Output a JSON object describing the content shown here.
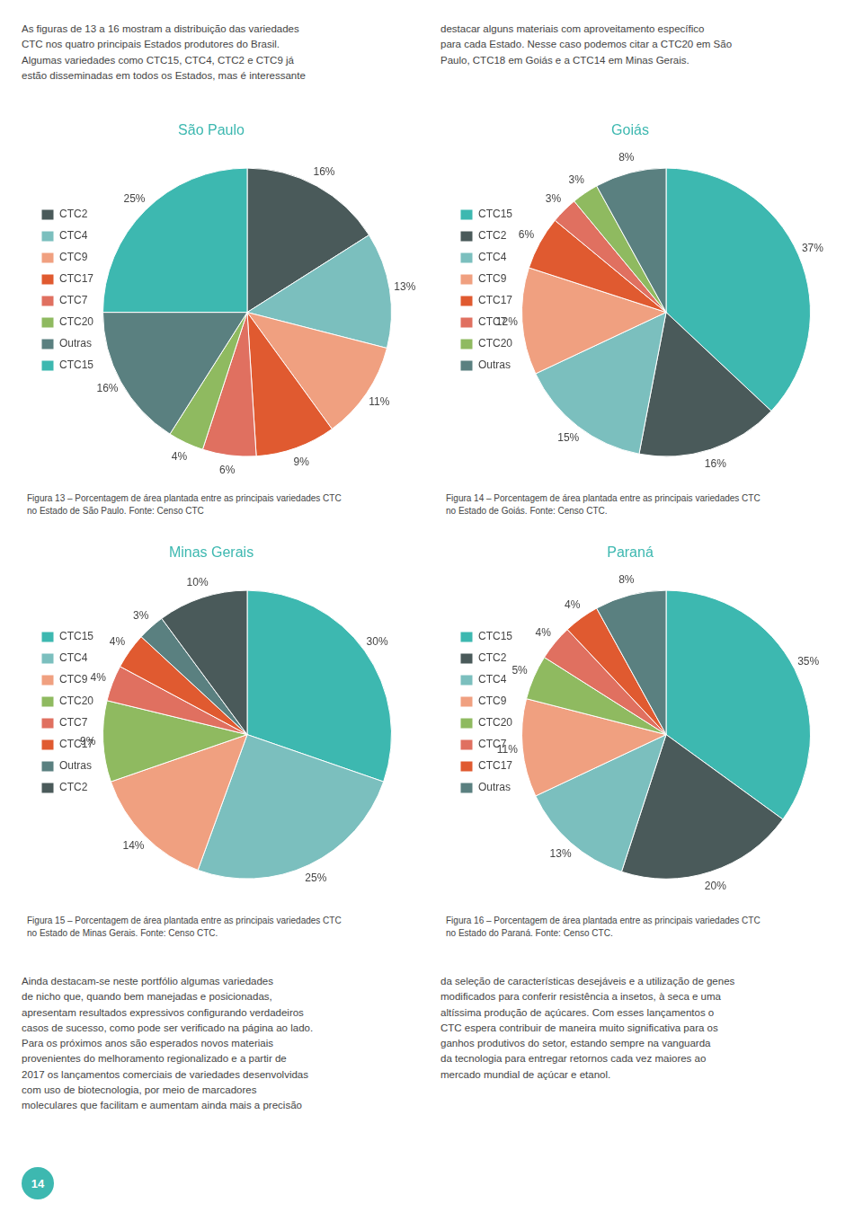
{
  "annotations": [
    "As figuras de 13 a 16 mostram a distribuição das variedades\nCTC nos quatro principais Estados produtores do Brasil.\nAlgumas variedades como CTC15, CTC4, CTC2 e CTC9 já\nestão disseminadas em todos os Estados, mas é interessante",
    "destacar alguns materiais com aproveitamento específico\npara cada Estado. Nesse caso podemos citar a CTC20 em São\nPaulo, CTC18 em Goiás e a CTC14 em Minas Gerais.",
    "Ainda destacam-se neste portfólio algumas variedades\nde nicho que, quando bem manejadas e posicionadas,\napresentam resultados expressivos configurando verdadeiros\ncasos de sucesso, como pode ser verificado na página ao lado.\nPara os próximos anos são esperados novos materiais\nprovenientes do melhoramento regionalizado e a partir de\n2017 os lançamentos comerciais de variedades desenvolvidas\ncom uso de biotecnologia, por meio de marcadores\nmoleculares que facilitam e aumentam ainda mais a precisão",
    "da seleção de características desejáveis e a utilização de genes\nmodificados para conferir resistência a insetos, à seca e uma\naltíssima produção de açúcares. Com esses lançamentos o\nCTC espera contribuir de maneira muito significativa para os\nganhos produtivos do setor, estando sempre na vanguarda\nda tecnologia para entregar retornos cada vez maiores ao\nmercado mundial de açúcar e etanol.",
    "14"
  ],
  "chart_data": [
    {
      "type": "pie",
      "title": "São Paulo",
      "annotations": [
        "Figura 13 – Porcentagem de área plantada entre as principais variedades CTC\nno Estado de São Paulo. Fonte: Censo CTC"
      ],
      "categories": [
        "CTC2",
        "CTC4",
        "CTC9",
        "CTC17",
        "CTC7",
        "CTC20",
        "Outras",
        "CTC15"
      ],
      "values": [
        16,
        13,
        11,
        9,
        6,
        4,
        16,
        25
      ],
      "value_labels": [
        "16%",
        "13%",
        "11%",
        "9%",
        "6%",
        "4%",
        "16%",
        "25%"
      ],
      "colors": [
        "#4a5a5a",
        "#7bbfbe",
        "#f0a080",
        "#e05a30",
        "#e07060",
        "#8fba60",
        "#5a8080",
        "#3db8b0"
      ],
      "data_labels": true,
      "legend": "left"
    },
    {
      "type": "pie",
      "title": "Goiás",
      "annotations": [
        "Figura 14 – Porcentagem de área plantada entre as principais variedades CTC\nno Estado de Goiás. Fonte: Censo CTC."
      ],
      "categories": [
        "CTC15",
        "CTC2",
        "CTC4",
        "CTC9",
        "CTC17",
        "CTC7",
        "CTC20",
        "Outras"
      ],
      "values": [
        37,
        16,
        15,
        12,
        6,
        3,
        3,
        8
      ],
      "value_labels": [
        "37%",
        "16%",
        "15%",
        "12%",
        "6%",
        "3%",
        "3%",
        "8%"
      ],
      "colors": [
        "#3db8b0",
        "#4a5a5a",
        "#7bbfbe",
        "#f0a080",
        "#e05a30",
        "#e07060",
        "#8fba60",
        "#5a8080"
      ],
      "data_labels": true,
      "legend": "left"
    },
    {
      "type": "pie",
      "title": "Minas Gerais",
      "annotations": [
        "Figura 15 – Porcentagem de área plantada entre as principais variedades CTC\nno Estado de Minas Gerais. Fonte: Censo CTC."
      ],
      "categories": [
        "CTC15",
        "CTC4",
        "CTC9",
        "CTC20",
        "CTC7",
        "CTC17",
        "Outras",
        "CTC2"
      ],
      "values": [
        30,
        25,
        14,
        9,
        4,
        4,
        3,
        10
      ],
      "value_labels": [
        "30%",
        "25%",
        "14%",
        "9%",
        "4%",
        "4%",
        "3%",
        "10%"
      ],
      "colors": [
        "#3db8b0",
        "#7bbfbe",
        "#f0a080",
        "#8fba60",
        "#e07060",
        "#e05a30",
        "#5a8080",
        "#4a5a5a"
      ],
      "data_labels": true,
      "legend": "left"
    },
    {
      "type": "pie",
      "title": "Paraná",
      "annotations": [
        "Figura 16 – Porcentagem de área plantada entre as principais variedades CTC\nno Estado do Paraná. Fonte: Censo CTC."
      ],
      "categories": [
        "CTC15",
        "CTC2",
        "CTC4",
        "CTC9",
        "CTC20",
        "CTC7",
        "CTC17",
        "Outras"
      ],
      "values": [
        35,
        20,
        13,
        11,
        5,
        4,
        4,
        8
      ],
      "value_labels": [
        "35%",
        "20%",
        "13%",
        "11%",
        "5%",
        "4%",
        "4%",
        "8%"
      ],
      "colors": [
        "#3db8b0",
        "#4a5a5a",
        "#7bbfbe",
        "#f0a080",
        "#8fba60",
        "#e07060",
        "#e05a30",
        "#5a8080"
      ],
      "data_labels": true,
      "legend": "left"
    }
  ]
}
